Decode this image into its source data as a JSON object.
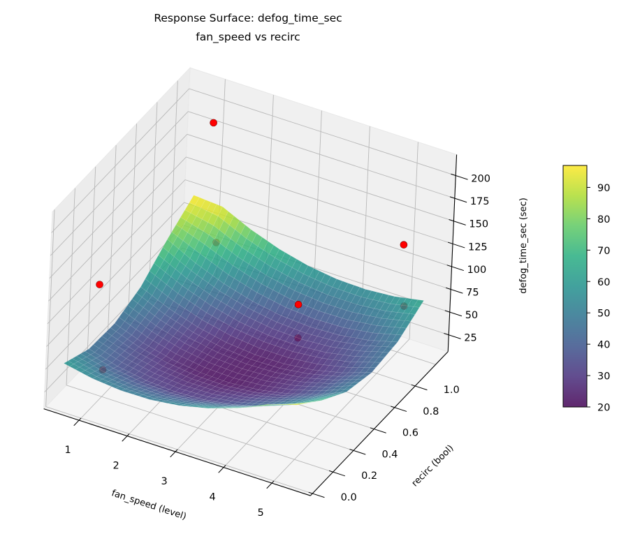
{
  "chart_data": {
    "type": "surface",
    "title": [
      "Response Surface: defog_time_sec",
      "fan_speed vs recirc"
    ],
    "xlabel": "fan_speed (level)",
    "ylabel": "recirc (bool)",
    "zlabel": "defog_time_sec (sec)",
    "xlim": [
      0.27,
      5.8
    ],
    "ylim": [
      -0.02,
      1.32
    ],
    "zlim": [
      6.6,
      223
    ],
    "xticks": [
      1,
      2,
      3,
      4,
      5
    ],
    "yticks": [
      0.0,
      0.2,
      0.4,
      0.6,
      0.8,
      1.0
    ],
    "ytick_labels": [
      "0.0",
      "0.2",
      "0.4",
      "0.6",
      "0.8",
      "1.0"
    ],
    "zticks": [
      25,
      50,
      75,
      100,
      125,
      150,
      175,
      200
    ],
    "grid": true,
    "colormap": "viridis",
    "surface_alpha": 0.85,
    "surface": {
      "fan_speed": [
        0.6,
        1.2,
        1.8,
        2.4,
        3.0,
        3.6,
        4.2,
        4.8,
        5.4
      ],
      "recirc": [
        0.0,
        0.25,
        0.5,
        0.75,
        1.0,
        1.25
      ],
      "defog_time_sec": [
        [
          59.9,
          53.5,
          50.6,
          51.0,
          54.9,
          62.3,
          73.0,
          87.2,
          97.0
        ],
        [
          46.3,
          37.5,
          32.2,
          30.3,
          31.9,
          36.9,
          45.3,
          57.2,
          72.5
        ],
        [
          44.7,
          33.6,
          26.0,
          21.8,
          21.0,
          23.6,
          29.7,
          39.2,
          52.2
        ],
        [
          55.3,
          41.8,
          31.9,
          25.3,
          22.2,
          22.5,
          26.2,
          33.4,
          44.0
        ],
        [
          78.0,
          62.2,
          49.9,
          41.0,
          35.5,
          33.5,
          34.9,
          39.7,
          48.0
        ],
        [
          97.0,
          94.7,
          80.0,
          68.8,
          61.0,
          56.6,
          55.7,
          58.2,
          64.1
        ]
      ]
    },
    "points": {
      "color": "#ff0000",
      "fan_speed": [
        1,
        1,
        1,
        4,
        3.5,
        5,
        5,
        1
      ],
      "recirc": [
        1.22,
        0.13,
        1.3,
        0.67,
        0.93,
        1.22,
        1.25,
        0.2
      ],
      "defog_time_sec": [
        187,
        138,
        46,
        104,
        28,
        122,
        51,
        36
      ]
    },
    "colorbar": {
      "range": [
        20,
        97
      ],
      "ticks": [
        20,
        30,
        40,
        50,
        60,
        70,
        80,
        90
      ]
    },
    "colors": {
      "pane": "#f2f2f2",
      "grid": "#b8b8b8",
      "viridis": [
        "#440154",
        "#472d7b",
        "#3b528b",
        "#2c728e",
        "#21918c",
        "#28ae80",
        "#5ec962",
        "#addc30",
        "#fde725"
      ]
    }
  }
}
